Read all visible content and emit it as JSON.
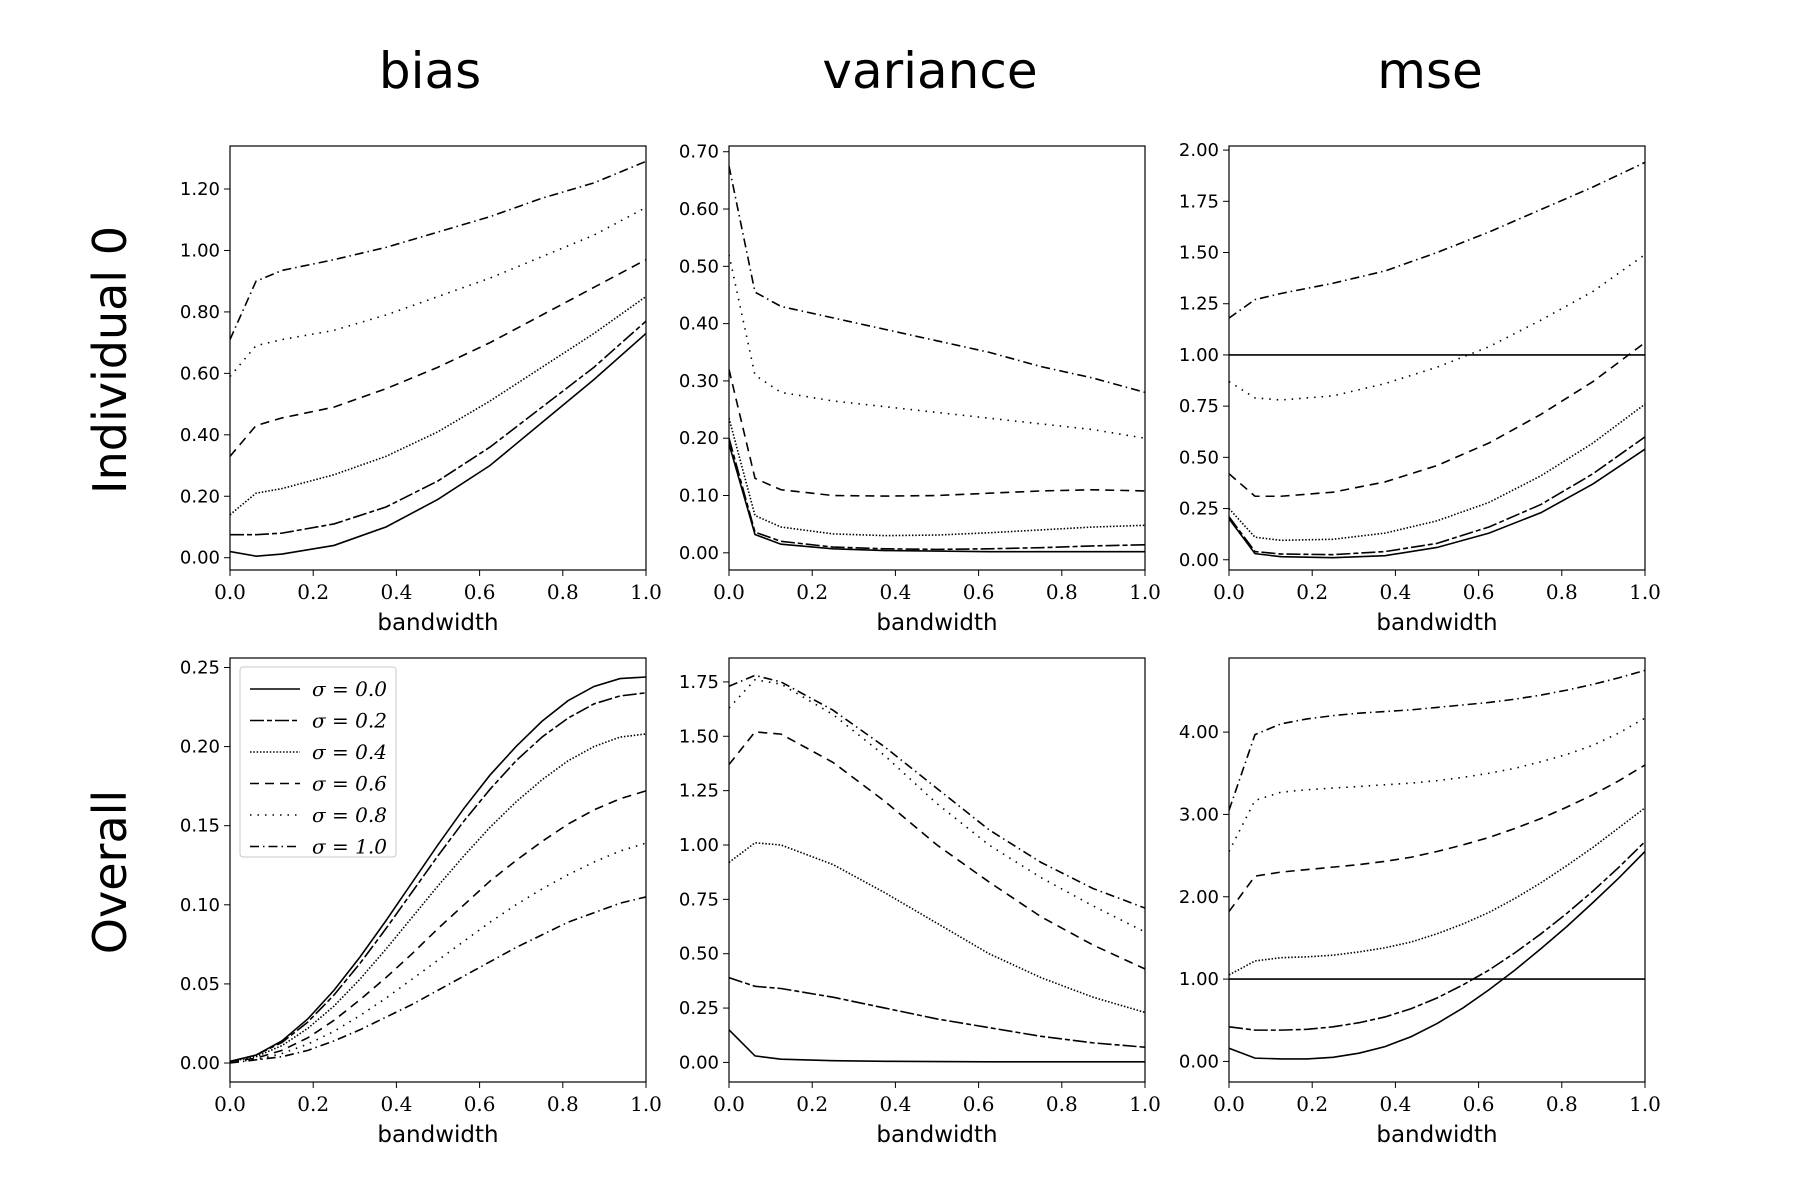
{
  "figure": {
    "columns": [
      "bias",
      "variance",
      "mse"
    ],
    "rows": [
      "Individual 0",
      "Overall"
    ]
  },
  "legend": {
    "entries": [
      {
        "label": "σ = 0.0",
        "dash": "solid"
      },
      {
        "label": "σ = 0.2",
        "dash": "longdash"
      },
      {
        "label": "σ = 0.4",
        "dash": "densedot"
      },
      {
        "label": "σ = 0.6",
        "dash": "dash"
      },
      {
        "label": "σ = 0.8",
        "dash": "dot"
      },
      {
        "label": "σ = 1.0",
        "dash": "dashdot"
      }
    ]
  },
  "chart_data": [
    {
      "type": "line",
      "row": "Individual 0",
      "column": "bias",
      "xlabel": "bandwidth",
      "ylabel": "",
      "xlim": [
        0,
        1
      ],
      "ylim": [
        -0.04,
        1.34
      ],
      "xticks": [
        "0.0",
        "0.2",
        "0.4",
        "0.6",
        "0.8",
        "1.0"
      ],
      "yticks": [
        "0.00",
        "0.20",
        "0.40",
        "0.60",
        "0.80",
        "1.00",
        "1.20"
      ],
      "x": [
        0,
        0.0625,
        0.125,
        0.25,
        0.375,
        0.5,
        0.625,
        0.75,
        0.875,
        1.0
      ],
      "series": [
        {
          "name": "σ = 0.0",
          "values": [
            0.02,
            0.005,
            0.012,
            0.04,
            0.1,
            0.19,
            0.3,
            0.44,
            0.58,
            0.73
          ]
        },
        {
          "name": "σ = 0.2",
          "values": [
            0.075,
            0.075,
            0.08,
            0.11,
            0.165,
            0.25,
            0.36,
            0.49,
            0.62,
            0.77
          ]
        },
        {
          "name": "σ = 0.4",
          "values": [
            0.14,
            0.21,
            0.225,
            0.27,
            0.33,
            0.41,
            0.51,
            0.62,
            0.73,
            0.85
          ]
        },
        {
          "name": "σ = 0.6",
          "values": [
            0.33,
            0.43,
            0.455,
            0.49,
            0.55,
            0.62,
            0.7,
            0.79,
            0.88,
            0.97
          ]
        },
        {
          "name": "σ = 0.8",
          "values": [
            0.59,
            0.69,
            0.71,
            0.74,
            0.79,
            0.85,
            0.91,
            0.98,
            1.05,
            1.14
          ]
        },
        {
          "name": "σ = 1.0",
          "values": [
            0.71,
            0.9,
            0.935,
            0.97,
            1.01,
            1.06,
            1.11,
            1.17,
            1.22,
            1.29
          ]
        }
      ]
    },
    {
      "type": "line",
      "row": "Individual 0",
      "column": "variance",
      "xlabel": "bandwidth",
      "ylabel": "",
      "xlim": [
        0,
        1
      ],
      "ylim": [
        -0.03,
        0.71
      ],
      "xticks": [
        "0.0",
        "0.2",
        "0.4",
        "0.6",
        "0.8",
        "1.0"
      ],
      "yticks": [
        "0.00",
        "0.10",
        "0.20",
        "0.30",
        "0.40",
        "0.50",
        "0.60",
        "0.70"
      ],
      "x": [
        0,
        0.0625,
        0.125,
        0.25,
        0.375,
        0.5,
        0.625,
        0.75,
        0.875,
        1.0
      ],
      "series": [
        {
          "name": "σ = 0.0",
          "values": [
            0.19,
            0.032,
            0.015,
            0.007,
            0.004,
            0.003,
            0.002,
            0.002,
            0.002,
            0.002
          ]
        },
        {
          "name": "σ = 0.2",
          "values": [
            0.2,
            0.036,
            0.02,
            0.01,
            0.007,
            0.006,
            0.007,
            0.009,
            0.012,
            0.014
          ]
        },
        {
          "name": "σ = 0.4",
          "values": [
            0.235,
            0.065,
            0.045,
            0.033,
            0.03,
            0.031,
            0.035,
            0.04,
            0.045,
            0.048
          ]
        },
        {
          "name": "σ = 0.6",
          "values": [
            0.32,
            0.13,
            0.11,
            0.1,
            0.099,
            0.1,
            0.104,
            0.108,
            0.11,
            0.108
          ]
        },
        {
          "name": "σ = 0.8",
          "values": [
            0.52,
            0.31,
            0.28,
            0.265,
            0.255,
            0.245,
            0.235,
            0.225,
            0.215,
            0.2
          ]
        },
        {
          "name": "σ = 1.0",
          "values": [
            0.675,
            0.455,
            0.43,
            0.41,
            0.39,
            0.37,
            0.35,
            0.325,
            0.305,
            0.28
          ]
        }
      ]
    },
    {
      "type": "line",
      "row": "Individual 0",
      "column": "mse",
      "xlabel": "bandwidth",
      "ylabel": "",
      "xlim": [
        0,
        1
      ],
      "ylim": [
        -0.05,
        2.02
      ],
      "xticks": [
        "0.0",
        "0.2",
        "0.4",
        "0.6",
        "0.8",
        "1.0"
      ],
      "yticks": [
        "0.00",
        "0.25",
        "0.50",
        "0.75",
        "1.00",
        "1.25",
        "1.50",
        "1.75",
        "2.00"
      ],
      "hline": 1.0,
      "x": [
        0,
        0.0625,
        0.125,
        0.25,
        0.375,
        0.5,
        0.625,
        0.75,
        0.875,
        1.0
      ],
      "series": [
        {
          "name": "σ = 0.0",
          "values": [
            0.2,
            0.03,
            0.015,
            0.01,
            0.02,
            0.06,
            0.13,
            0.23,
            0.37,
            0.54
          ]
        },
        {
          "name": "σ = 0.2",
          "values": [
            0.21,
            0.04,
            0.028,
            0.025,
            0.04,
            0.08,
            0.16,
            0.27,
            0.42,
            0.6
          ]
        },
        {
          "name": "σ = 0.4",
          "values": [
            0.25,
            0.11,
            0.095,
            0.1,
            0.13,
            0.19,
            0.28,
            0.41,
            0.57,
            0.76
          ]
        },
        {
          "name": "σ = 0.6",
          "values": [
            0.42,
            0.31,
            0.31,
            0.33,
            0.38,
            0.46,
            0.57,
            0.71,
            0.87,
            1.06
          ]
        },
        {
          "name": "σ = 0.8",
          "values": [
            0.87,
            0.79,
            0.78,
            0.8,
            0.86,
            0.94,
            1.04,
            1.17,
            1.31,
            1.49
          ]
        },
        {
          "name": "σ = 1.0",
          "values": [
            1.18,
            1.27,
            1.3,
            1.35,
            1.41,
            1.5,
            1.6,
            1.71,
            1.82,
            1.94
          ]
        }
      ]
    },
    {
      "type": "line",
      "row": "Overall",
      "column": "bias",
      "xlabel": "bandwidth",
      "ylabel": "",
      "xlim": [
        0,
        1
      ],
      "ylim": [
        -0.012,
        0.256
      ],
      "xticks": [
        "0.0",
        "0.2",
        "0.4",
        "0.6",
        "0.8",
        "1.0"
      ],
      "yticks": [
        "0.00",
        "0.05",
        "0.10",
        "0.15",
        "0.20",
        "0.25"
      ],
      "x": [
        0,
        0.0625,
        0.125,
        0.1875,
        0.25,
        0.3125,
        0.375,
        0.4375,
        0.5,
        0.5625,
        0.625,
        0.6875,
        0.75,
        0.8125,
        0.875,
        0.9375,
        1.0
      ],
      "series": [
        {
          "name": "σ = 0.0",
          "values": [
            0.001,
            0.005,
            0.014,
            0.028,
            0.046,
            0.067,
            0.09,
            0.114,
            0.138,
            0.161,
            0.182,
            0.2,
            0.216,
            0.229,
            0.238,
            0.243,
            0.244
          ]
        },
        {
          "name": "σ = 0.2",
          "values": [
            0.001,
            0.005,
            0.013,
            0.026,
            0.043,
            0.063,
            0.085,
            0.108,
            0.131,
            0.153,
            0.173,
            0.191,
            0.206,
            0.218,
            0.227,
            0.232,
            0.234
          ]
        },
        {
          "name": "σ = 0.4",
          "values": [
            0.001,
            0.004,
            0.011,
            0.022,
            0.036,
            0.053,
            0.072,
            0.092,
            0.112,
            0.131,
            0.149,
            0.165,
            0.179,
            0.191,
            0.2,
            0.206,
            0.208
          ]
        },
        {
          "name": "σ = 0.6",
          "values": [
            0.001,
            0.003,
            0.008,
            0.016,
            0.027,
            0.04,
            0.054,
            0.069,
            0.085,
            0.1,
            0.115,
            0.128,
            0.14,
            0.151,
            0.16,
            0.167,
            0.172
          ]
        },
        {
          "name": "σ = 0.8",
          "values": [
            0.001,
            0.002,
            0.006,
            0.012,
            0.02,
            0.03,
            0.041,
            0.053,
            0.065,
            0.077,
            0.089,
            0.1,
            0.11,
            0.119,
            0.127,
            0.134,
            0.139
          ]
        },
        {
          "name": "σ = 1.0",
          "values": [
            0.0,
            0.002,
            0.004,
            0.008,
            0.014,
            0.021,
            0.029,
            0.037,
            0.046,
            0.055,
            0.064,
            0.073,
            0.081,
            0.089,
            0.095,
            0.101,
            0.105
          ]
        }
      ]
    },
    {
      "type": "line",
      "row": "Overall",
      "column": "variance",
      "xlabel": "bandwidth",
      "ylabel": "",
      "xlim": [
        0,
        1
      ],
      "ylim": [
        -0.09,
        1.86
      ],
      "xticks": [
        "0.0",
        "0.2",
        "0.4",
        "0.6",
        "0.8",
        "1.0"
      ],
      "yticks": [
        "0.00",
        "0.25",
        "0.50",
        "0.75",
        "1.00",
        "1.25",
        "1.50",
        "1.75"
      ],
      "x": [
        0,
        0.0625,
        0.125,
        0.25,
        0.375,
        0.5,
        0.625,
        0.75,
        0.875,
        1.0
      ],
      "series": [
        {
          "name": "σ = 0.0",
          "values": [
            0.15,
            0.03,
            0.015,
            0.008,
            0.005,
            0.004,
            0.003,
            0.003,
            0.003,
            0.003
          ]
        },
        {
          "name": "σ = 0.2",
          "values": [
            0.39,
            0.35,
            0.34,
            0.3,
            0.25,
            0.2,
            0.16,
            0.12,
            0.09,
            0.07
          ]
        },
        {
          "name": "σ = 0.4",
          "values": [
            0.92,
            1.01,
            1.0,
            0.91,
            0.78,
            0.64,
            0.5,
            0.39,
            0.3,
            0.23
          ]
        },
        {
          "name": "σ = 0.6",
          "values": [
            1.37,
            1.52,
            1.51,
            1.38,
            1.2,
            1.0,
            0.83,
            0.67,
            0.54,
            0.43
          ]
        },
        {
          "name": "σ = 0.8",
          "values": [
            1.63,
            1.76,
            1.74,
            1.6,
            1.41,
            1.19,
            1.0,
            0.85,
            0.72,
            0.6
          ]
        },
        {
          "name": "σ = 1.0",
          "values": [
            1.73,
            1.78,
            1.75,
            1.62,
            1.45,
            1.26,
            1.07,
            0.92,
            0.8,
            0.71
          ]
        }
      ]
    },
    {
      "type": "line",
      "row": "Overall",
      "column": "mse",
      "xlabel": "bandwidth",
      "ylabel": "",
      "xlim": [
        0,
        1
      ],
      "ylim": [
        -0.25,
        4.9
      ],
      "xticks": [
        "0.0",
        "0.2",
        "0.4",
        "0.6",
        "0.8",
        "1.0"
      ],
      "yticks": [
        "0.00",
        "1.00",
        "2.00",
        "3.00",
        "4.00"
      ],
      "hline": 1.0,
      "x": [
        0,
        0.0625,
        0.125,
        0.1875,
        0.25,
        0.3125,
        0.375,
        0.4375,
        0.5,
        0.5625,
        0.625,
        0.6875,
        0.75,
        0.8125,
        0.875,
        0.9375,
        1.0
      ],
      "series": [
        {
          "name": "σ = 0.0",
          "values": [
            0.16,
            0.04,
            0.03,
            0.03,
            0.05,
            0.1,
            0.18,
            0.3,
            0.46,
            0.65,
            0.87,
            1.11,
            1.37,
            1.64,
            1.93,
            2.23,
            2.55
          ]
        },
        {
          "name": "σ = 0.2",
          "values": [
            0.42,
            0.38,
            0.38,
            0.39,
            0.42,
            0.47,
            0.54,
            0.64,
            0.77,
            0.93,
            1.11,
            1.32,
            1.55,
            1.8,
            2.07,
            2.36,
            2.67
          ]
        },
        {
          "name": "σ = 0.4",
          "values": [
            1.05,
            1.22,
            1.26,
            1.27,
            1.29,
            1.33,
            1.38,
            1.45,
            1.55,
            1.67,
            1.81,
            1.98,
            2.17,
            2.38,
            2.6,
            2.84,
            3.08
          ]
        },
        {
          "name": "σ = 0.6",
          "values": [
            1.82,
            2.25,
            2.3,
            2.33,
            2.36,
            2.39,
            2.43,
            2.48,
            2.55,
            2.63,
            2.72,
            2.83,
            2.95,
            3.09,
            3.24,
            3.41,
            3.6
          ]
        },
        {
          "name": "σ = 0.8",
          "values": [
            2.55,
            3.17,
            3.27,
            3.3,
            3.32,
            3.34,
            3.36,
            3.38,
            3.41,
            3.45,
            3.5,
            3.56,
            3.64,
            3.73,
            3.84,
            3.99,
            4.17
          ]
        },
        {
          "name": "σ = 1.0",
          "values": [
            3.05,
            3.97,
            4.1,
            4.16,
            4.2,
            4.23,
            4.25,
            4.27,
            4.3,
            4.33,
            4.36,
            4.4,
            4.45,
            4.51,
            4.58,
            4.66,
            4.75
          ]
        }
      ]
    }
  ]
}
